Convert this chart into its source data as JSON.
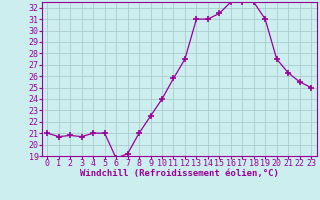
{
  "x": [
    0,
    1,
    2,
    3,
    4,
    5,
    6,
    7,
    8,
    9,
    10,
    11,
    12,
    13,
    14,
    15,
    16,
    17,
    18,
    19,
    20,
    21,
    22,
    23
  ],
  "y": [
    21.0,
    20.7,
    20.8,
    20.7,
    21.0,
    21.0,
    18.8,
    19.2,
    21.0,
    22.5,
    24.0,
    25.8,
    27.5,
    31.0,
    31.0,
    31.5,
    32.5,
    32.5,
    32.5,
    31.0,
    27.5,
    26.3,
    25.5,
    25.0
  ],
  "line_color": "#990099",
  "marker": "+",
  "marker_size": 4,
  "bg_color": "#cceeee",
  "grid_color": "#aacccc",
  "xlabel": "Windchill (Refroidissement éolien,°C)",
  "xlabel_color": "#990099",
  "tick_color": "#990099",
  "axis_color": "#990099",
  "ylim": [
    19,
    32.5
  ],
  "xlim": [
    -0.5,
    23.5
  ],
  "yticks": [
    19,
    20,
    21,
    22,
    23,
    24,
    25,
    26,
    27,
    28,
    29,
    30,
    31,
    32
  ],
  "xticks": [
    0,
    1,
    2,
    3,
    4,
    5,
    6,
    7,
    8,
    9,
    10,
    11,
    12,
    13,
    14,
    15,
    16,
    17,
    18,
    19,
    20,
    21,
    22,
    23
  ],
  "label_fontsize": 6.5,
  "tick_fontsize": 6
}
